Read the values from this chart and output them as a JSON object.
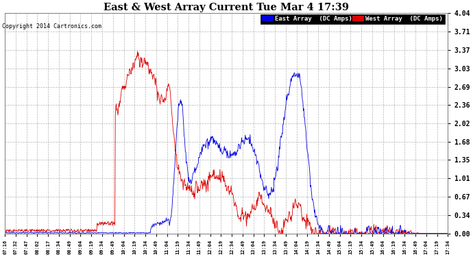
{
  "title": "East & West Array Current Tue Mar 4 17:39",
  "copyright": "Copyright 2014 Cartronics.com",
  "legend_east": "East Array  (DC Amps)",
  "legend_west": "West Array  (DC Amps)",
  "east_color": "#0000dd",
  "west_color": "#dd0000",
  "bg_color": "#ffffff",
  "plot_bg_color": "#ffffff",
  "grid_color": "#aaaaaa",
  "title_color": "#000000",
  "ylim": [
    0.0,
    4.04
  ],
  "yticks": [
    0.0,
    0.34,
    0.67,
    1.01,
    1.35,
    1.68,
    2.02,
    2.36,
    2.69,
    3.03,
    3.37,
    3.71,
    4.04
  ],
  "xtick_labels": [
    "07:16",
    "07:32",
    "07:47",
    "08:02",
    "08:17",
    "08:34",
    "08:49",
    "09:04",
    "09:19",
    "09:34",
    "09:49",
    "10:04",
    "10:19",
    "10:34",
    "10:49",
    "11:04",
    "11:19",
    "11:34",
    "11:49",
    "12:04",
    "12:19",
    "12:34",
    "12:49",
    "13:04",
    "13:19",
    "13:34",
    "13:49",
    "14:04",
    "14:19",
    "14:34",
    "14:49",
    "15:04",
    "15:19",
    "15:34",
    "15:49",
    "16:04",
    "16:19",
    "16:34",
    "16:49",
    "17:04",
    "17:19",
    "17:34"
  ],
  "n_points": 1000
}
